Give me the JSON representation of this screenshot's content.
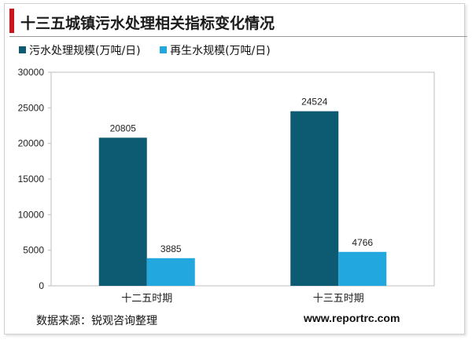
{
  "title": "十三五城镇污水处理相关指标变化情况",
  "colors": {
    "accent": "#c8161d",
    "series1": "#0d5a73",
    "series2": "#22a7de"
  },
  "chart_data": {
    "type": "bar",
    "categories": [
      "十二五时期",
      "十三五时期"
    ],
    "series": [
      {
        "name": "污水处理规模(万吨/日)",
        "values": [
          20805,
          24524
        ]
      },
      {
        "name": "再生水规模(万吨/日)",
        "values": [
          3885,
          4766
        ]
      }
    ],
    "yticks": [
      "0",
      "5000",
      "10000",
      "15000",
      "20000",
      "25000",
      "30000"
    ],
    "ylim": [
      0,
      30000
    ],
    "grid": false,
    "legend": "top-left"
  },
  "footer": {
    "source": "数据来源：锐观咨询整理",
    "website": "www.reportrc.com"
  }
}
